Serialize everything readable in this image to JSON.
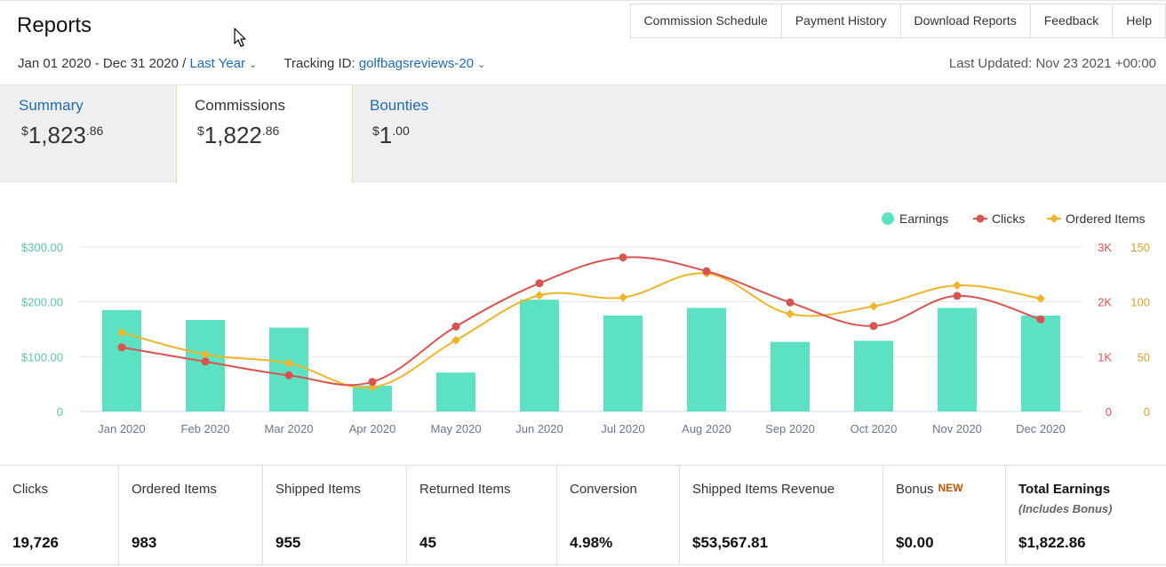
{
  "header": {
    "title": "Reports",
    "date_range": "Jan 01 2020 - Dec 31 2020 /",
    "period_link": "Last Year",
    "tracking_label": "Tracking ID:",
    "tracking_id": "golfbagsreviews-20",
    "last_updated": "Last Updated: Nov 23 2021 +00:00"
  },
  "top_nav": [
    "Commission Schedule",
    "Payment History",
    "Download Reports",
    "Feedback",
    "Help"
  ],
  "tabs": [
    {
      "label": "Summary",
      "currency": "$",
      "amount": "1,823",
      "cents": ".86"
    },
    {
      "label": "Commissions",
      "currency": "$",
      "amount": "1,822",
      "cents": ".86"
    },
    {
      "label": "Bounties",
      "currency": "$",
      "amount": "1",
      "cents": ".00"
    }
  ],
  "chart_data": {
    "type": "bar",
    "categories": [
      "Jan 2020",
      "Feb 2020",
      "Mar 2020",
      "Apr 2020",
      "May 2020",
      "Jun 2020",
      "Jul 2020",
      "Aug 2020",
      "Sep 2020",
      "Oct 2020",
      "Nov 2020",
      "Dec 2020"
    ],
    "series": [
      {
        "name": "Earnings",
        "type": "bar",
        "axis": "left",
        "color": "#5ce1c3",
        "values": [
          185,
          167,
          153,
          47,
          71,
          204,
          175,
          189,
          127,
          129,
          189,
          175
        ]
      },
      {
        "name": "Clicks",
        "type": "line",
        "axis": "right1",
        "color": "#d9534f",
        "values": [
          1170,
          910,
          660,
          540,
          1550,
          2340,
          2810,
          2560,
          1990,
          1560,
          2110,
          1680
        ]
      },
      {
        "name": "Ordered Items",
        "type": "line",
        "axis": "right2",
        "color": "#f0b429",
        "values": [
          72,
          52,
          44,
          22,
          65,
          106,
          104,
          126,
          89,
          96,
          115,
          103
        ]
      }
    ],
    "axes": {
      "left": {
        "ticks": [
          "0",
          "$100.00",
          "$200.00",
          "$300.00"
        ],
        "range": [
          0,
          300
        ],
        "color": "#5cc6a4"
      },
      "right1": {
        "ticks": [
          "0",
          "1K",
          "2K",
          "3K"
        ],
        "range": [
          0,
          3000
        ],
        "color": "#d9534f"
      },
      "right2": {
        "ticks": [
          "0",
          "50",
          "100",
          "150"
        ],
        "range": [
          0,
          150
        ],
        "color": "#e0a030"
      }
    },
    "legend_position": "top-right",
    "grid": true
  },
  "stats": [
    {
      "label": "Clicks",
      "value": "19,726"
    },
    {
      "label": "Ordered Items",
      "value": "983"
    },
    {
      "label": "Shipped Items",
      "value": "955"
    },
    {
      "label": "Returned Items",
      "value": "45"
    },
    {
      "label": "Conversion",
      "value": "4.98%"
    },
    {
      "label": "Shipped Items Revenue",
      "value": "$53,567.81"
    },
    {
      "label": "Bonus",
      "badge": "NEW",
      "value": "$0.00"
    },
    {
      "label": "Total Earnings",
      "sub": "(Includes Bonus)",
      "value": "$1,822.86"
    }
  ],
  "icons": {
    "cursor": "mouse-pointer-icon",
    "chevron": "chevron-down-icon"
  }
}
